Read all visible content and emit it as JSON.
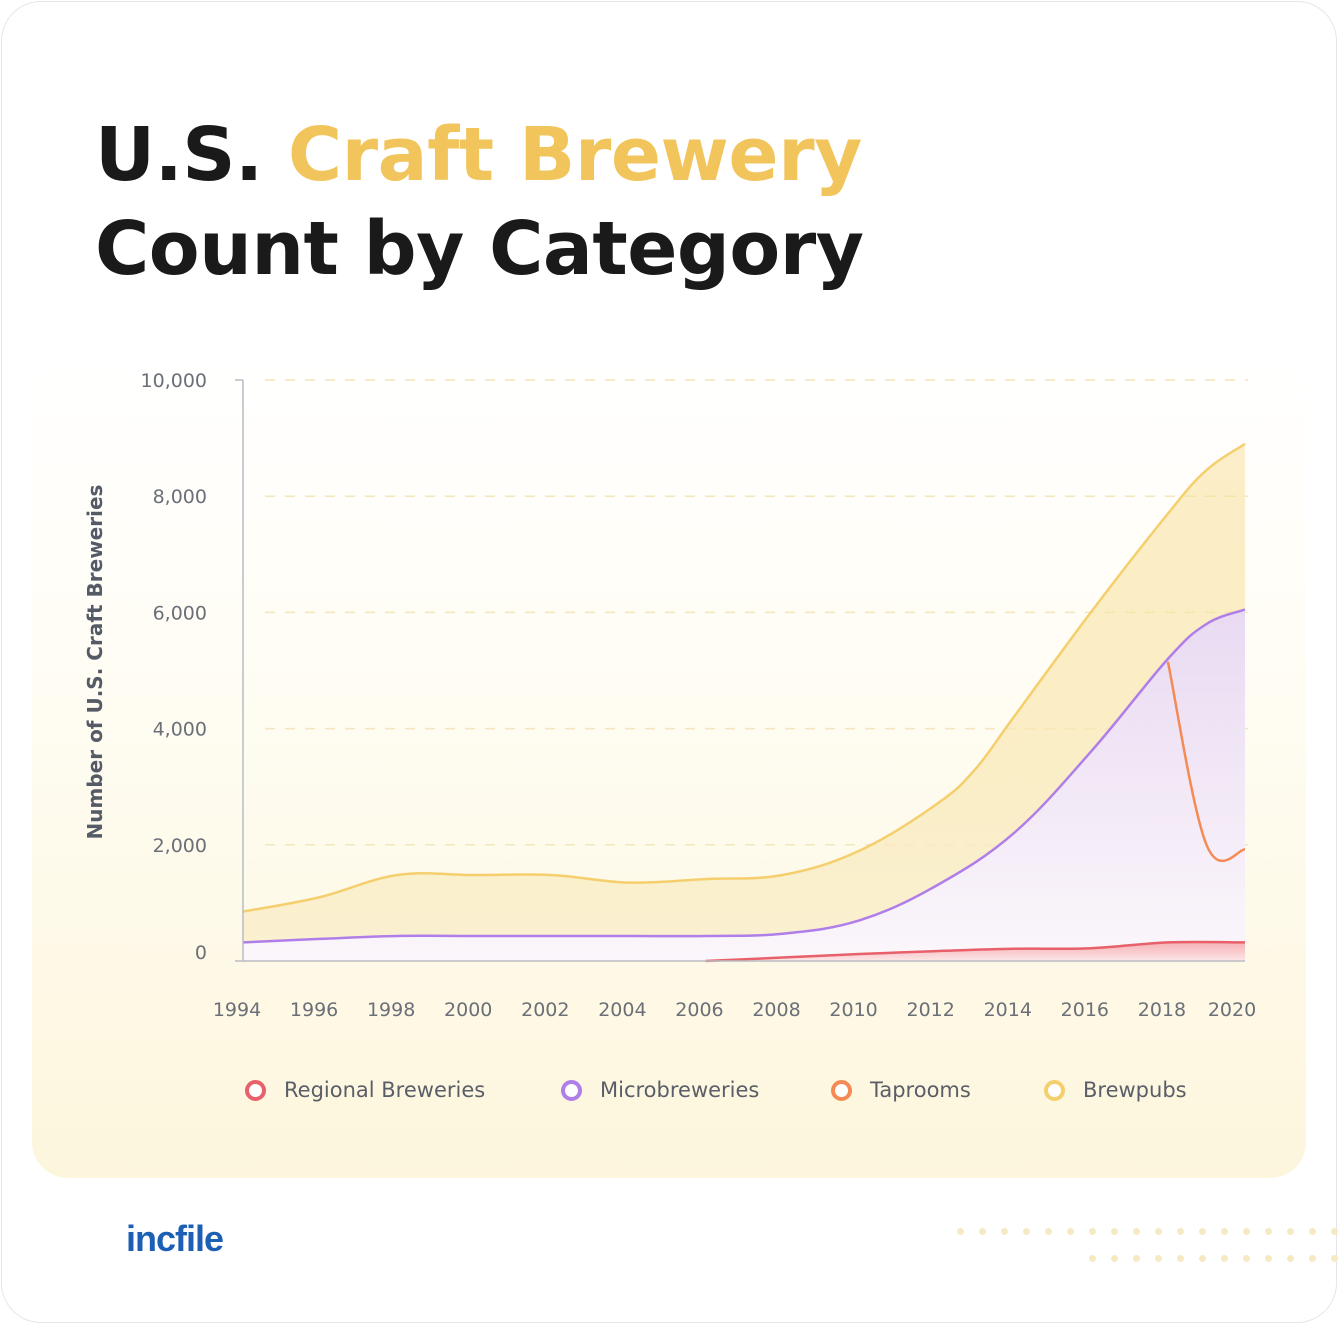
{
  "header": {
    "title_pre": "U.S.",
    "title_accent": "Craft Brewery",
    "title_line2": "Count by Category"
  },
  "brand": {
    "logo_text": "incfile"
  },
  "colors": {
    "accent": "#f2c55c",
    "regional": "#e8606a",
    "micro": "#b07ee8",
    "taprooms": "#f58a55",
    "brewpubs": "#f5cf6e"
  },
  "chart_data": {
    "type": "area",
    "ylabel": "Number of U.S. Craft Breweries",
    "xlabel": "",
    "ylim": [
      0,
      10000
    ],
    "xlim": [
      1994,
      2020
    ],
    "yticks": [
      {
        "value": 0,
        "label": "0"
      },
      {
        "value": 2000,
        "label": "2,000"
      },
      {
        "value": 4000,
        "label": "4,000"
      },
      {
        "value": 6000,
        "label": "6,000"
      },
      {
        "value": 8000,
        "label": "8,000"
      },
      {
        "value": 10000,
        "label": "10,000"
      }
    ],
    "xticks": [
      "1994",
      "1996",
      "1998",
      "2000",
      "2002",
      "2004",
      "2006",
      "2008",
      "2010",
      "2012",
      "2014",
      "2016",
      "2018",
      "2020"
    ],
    "grid": true,
    "legend_position": "bottom",
    "series": [
      {
        "key": "brewpubs",
        "name": "Brewpubs",
        "x": [
          1994,
          1996,
          1998,
          2000,
          2002,
          2004,
          2006,
          2008,
          2010,
          2012,
          2013,
          2014,
          2016,
          2018,
          2019,
          2020
        ],
        "values": [
          850,
          1100,
          1480,
          1480,
          1480,
          1350,
          1410,
          1480,
          1900,
          2700,
          3300,
          4200,
          6000,
          7700,
          8450,
          8900
        ]
      },
      {
        "key": "micro",
        "name": "Microbreweries",
        "x": [
          1994,
          1996,
          1998,
          2000,
          2002,
          2004,
          2006,
          2008,
          2010,
          2012,
          2014,
          2016,
          2018,
          2019,
          2020
        ],
        "values": [
          320,
          380,
          430,
          430,
          430,
          430,
          430,
          470,
          700,
          1300,
          2200,
          3600,
          5200,
          5800,
          6050
        ]
      },
      {
        "key": "taprooms",
        "name": "Taprooms",
        "x": [
          2018,
          2019,
          2020
        ],
        "values": [
          5150,
          2000,
          1920
        ]
      },
      {
        "key": "regional",
        "name": "Regional Breweries",
        "x": [
          2006,
          2008,
          2010,
          2012,
          2014,
          2016,
          2018,
          2020
        ],
        "values": [
          0,
          60,
          120,
          170,
          210,
          220,
          320,
          320
        ]
      }
    ],
    "legend_order": [
      "regional",
      "micro",
      "taprooms",
      "brewpubs"
    ]
  }
}
